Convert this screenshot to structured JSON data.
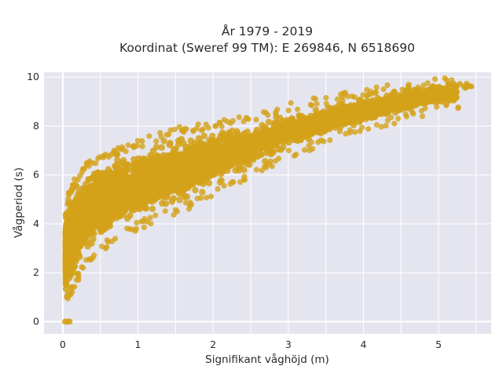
{
  "chart_data": {
    "type": "scatter",
    "title_line1": "År 1979 - 2019",
    "title_line2": "Koordinat (Sweref 99 TM): E 269846, N 6518690",
    "xlabel": "Signifikant våghöjd (m)",
    "ylabel": "Vågperiod (s)",
    "xlim": [
      -0.25,
      5.7
    ],
    "ylim": [
      -0.5,
      10.2
    ],
    "xticks": [
      0,
      1,
      2,
      3,
      4,
      5
    ],
    "yticks": [
      0,
      2,
      4,
      6,
      8,
      10
    ],
    "grid": true,
    "colors": {
      "background": "#e5e5ef",
      "marker": "#d4a21a"
    },
    "series": [
      {
        "point_count_estimate": "many thousands",
        "envelope_lower": [
          [
            0.05,
            1.05
          ],
          [
            0.1,
            1.4
          ],
          [
            0.3,
            2.6
          ],
          [
            0.5,
            3.2
          ],
          [
            1.0,
            4.1
          ],
          [
            1.5,
            4.7
          ],
          [
            2.0,
            5.4
          ],
          [
            2.5,
            6.2
          ],
          [
            3.0,
            7.0
          ],
          [
            3.5,
            7.6
          ],
          [
            4.0,
            8.1
          ],
          [
            4.5,
            8.5
          ],
          [
            5.0,
            8.9
          ]
        ],
        "envelope_upper": [
          [
            0.05,
            4.6
          ],
          [
            0.1,
            5.2
          ],
          [
            0.3,
            6.2
          ],
          [
            0.5,
            6.6
          ],
          [
            1.0,
            7.1
          ],
          [
            1.5,
            7.6
          ],
          [
            2.0,
            7.9
          ],
          [
            2.5,
            8.2
          ],
          [
            3.0,
            8.6
          ],
          [
            3.5,
            8.9
          ],
          [
            4.0,
            9.2
          ],
          [
            4.5,
            9.4
          ],
          [
            5.0,
            9.6
          ],
          [
            5.4,
            9.7
          ]
        ],
        "zero_period_points": [
          [
            0.03,
            0
          ],
          [
            0.06,
            0
          ],
          [
            0.09,
            0
          ]
        ]
      }
    ]
  }
}
